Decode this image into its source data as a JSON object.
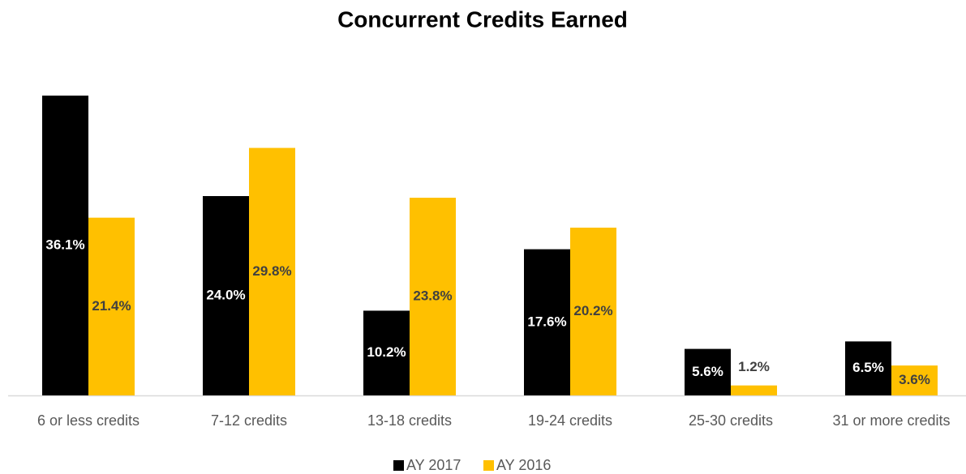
{
  "chart_data": {
    "type": "bar",
    "title": "Concurrent Credits Earned",
    "categories": [
      "6 or less credits",
      "7-12 credits",
      "13-18 credits",
      "19-24 credits",
      "25-30 credits",
      "31 or more credits"
    ],
    "series": [
      {
        "name": "AY 2017",
        "color": "#000000",
        "values": [
          36.1,
          24.0,
          10.2,
          17.6,
          5.6,
          6.5
        ],
        "value_labels": [
          "36.1%",
          "24.0%",
          "10.2%",
          "17.6%",
          "5.6%",
          "6.5%"
        ]
      },
      {
        "name": "AY 2016",
        "color": "#FFC000",
        "values": [
          21.4,
          29.8,
          23.8,
          20.2,
          1.2,
          3.6
        ],
        "value_labels": [
          "21.4%",
          "29.8%",
          "23.8%",
          "20.2%",
          "1.2%",
          "3.6%"
        ]
      }
    ],
    "legend": "bottom"
  }
}
